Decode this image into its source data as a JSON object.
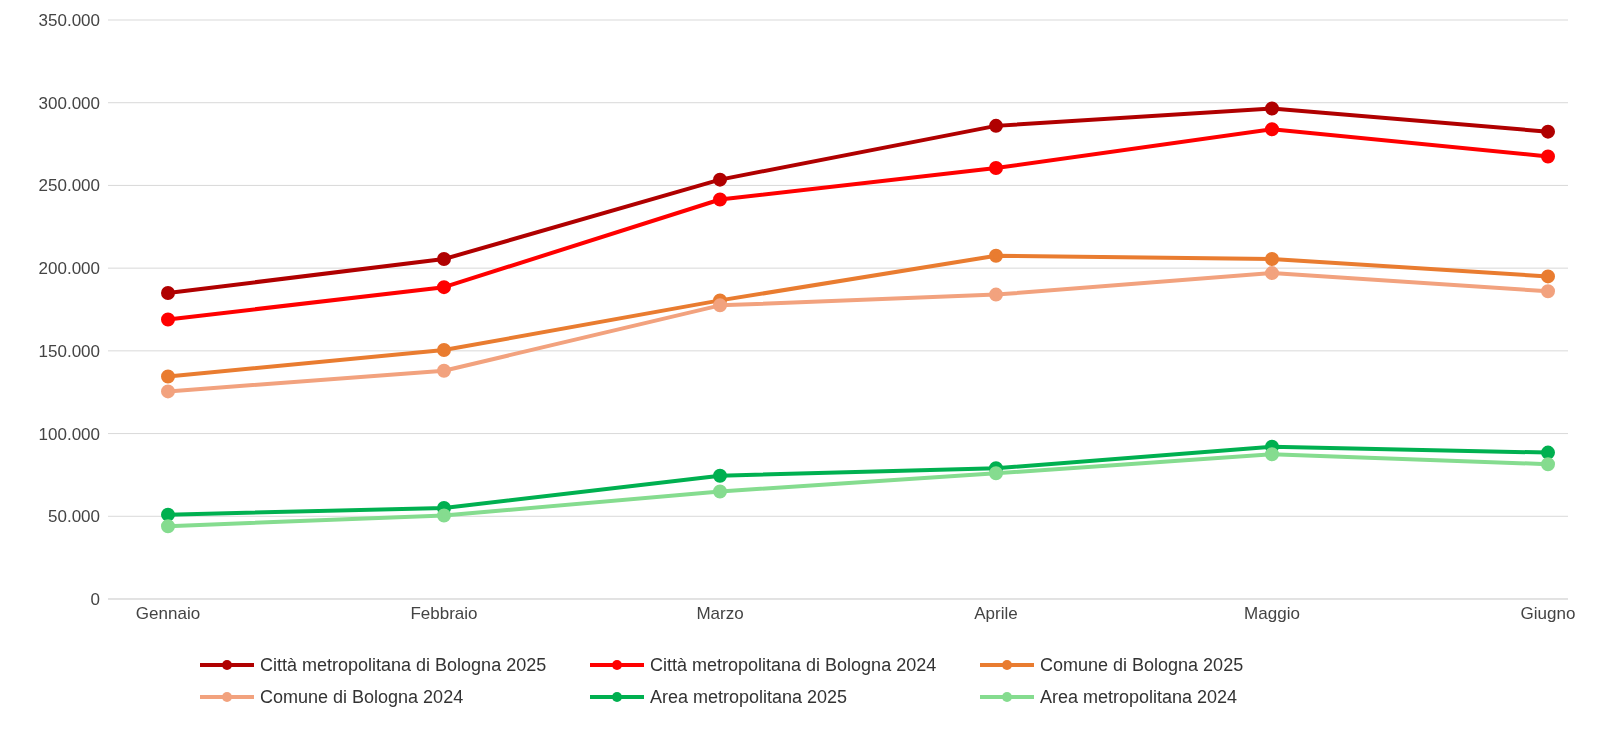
{
  "chart_data": {
    "type": "line",
    "categories": [
      "Gennaio",
      "Febbraio",
      "Marzo",
      "Aprile",
      "Maggio",
      "Giugno"
    ],
    "series": [
      {
        "name": "Città metropolitana di Bologna 2025",
        "color": "#b00000",
        "values": [
          185000,
          205500,
          253500,
          286000,
          296500,
          282500
        ]
      },
      {
        "name": "Città metropolitana di Bologna 2024",
        "color": "#ff0000",
        "values": [
          169000,
          188500,
          241500,
          260500,
          284000,
          267500
        ]
      },
      {
        "name": "Comune di Bologna 2025",
        "color": "#e97c30",
        "values": [
          134500,
          150500,
          180500,
          207500,
          205500,
          195000
        ]
      },
      {
        "name": "Comune di Bologna 2024",
        "color": "#f2a27e",
        "values": [
          125500,
          138000,
          177500,
          184000,
          197000,
          186000
        ]
      },
      {
        "name": "Area metropolitana 2025",
        "color": "#00b050",
        "values": [
          51000,
          55000,
          74500,
          79000,
          92000,
          88500
        ]
      },
      {
        "name": "Area metropolitana 2024",
        "color": "#85dc8f",
        "values": [
          44000,
          50500,
          65000,
          76000,
          87500,
          81500
        ]
      }
    ],
    "ylim": [
      0,
      350000
    ],
    "yticks": [
      0,
      {
        "value": 50000,
        "label": "50.000"
      },
      {
        "value": 100000,
        "label": "100.000"
      },
      {
        "value": 150000,
        "label": "150.000"
      },
      {
        "value": 200000,
        "label": "200.000"
      },
      {
        "value": 250000,
        "label": "250.000"
      },
      {
        "value": 300000,
        "label": "300.000"
      },
      {
        "value": 350000,
        "label": "350.000"
      }
    ],
    "grid": "y",
    "legend": "bottom",
    "marker": "circle",
    "line_style": "solid"
  }
}
